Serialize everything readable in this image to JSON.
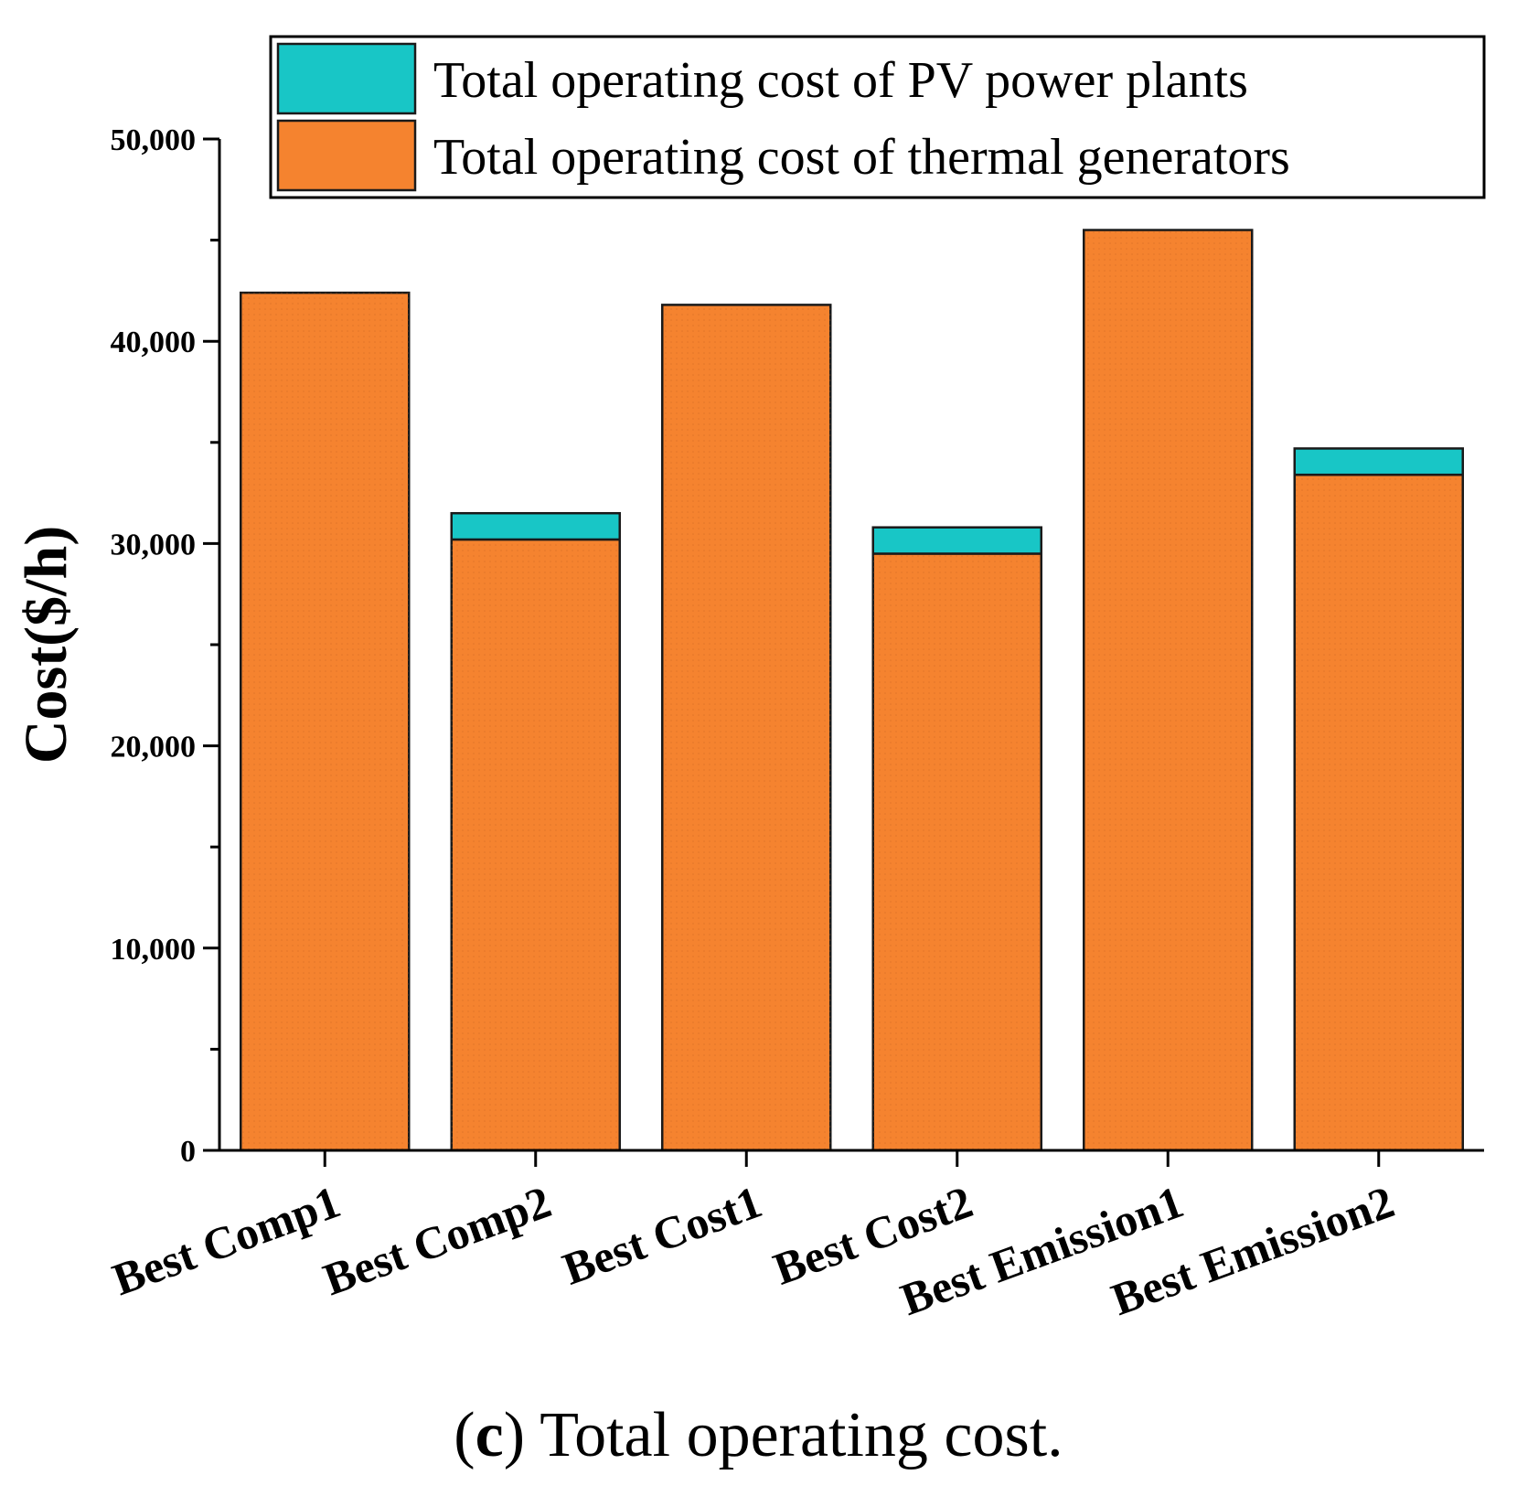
{
  "chart_data": {
    "type": "bar",
    "stacked": true,
    "categories": [
      "Best Comp1",
      "Best Comp2",
      "Best Cost1",
      "Best Cost2",
      "Best Emission1",
      "Best Emission2"
    ],
    "series": [
      {
        "name": "Total operating cost of thermal generators",
        "color": "#F5832F",
        "values": [
          42400,
          30200,
          41800,
          29500,
          45500,
          33400
        ]
      },
      {
        "name": "Total operating cost of PV power plants",
        "color": "#18C6C6",
        "values": [
          0,
          1300,
          0,
          1300,
          0,
          1300
        ]
      }
    ],
    "ylabel": "Cost($/h)",
    "ylim": [
      0,
      50000
    ],
    "yticks": [
      0,
      10000,
      20000,
      30000,
      40000,
      50000
    ],
    "ytick_labels": [
      "0",
      "10,000",
      "20,000",
      "30,000",
      "40,000",
      "50,000"
    ],
    "legend": [
      "Total operating cost of PV power plants",
      "Total operating cost of thermal generators"
    ],
    "legend_position": "top-right"
  },
  "caption": {
    "letter": "c",
    "open": "(",
    "close": ")",
    "text": " Total operating cost."
  }
}
